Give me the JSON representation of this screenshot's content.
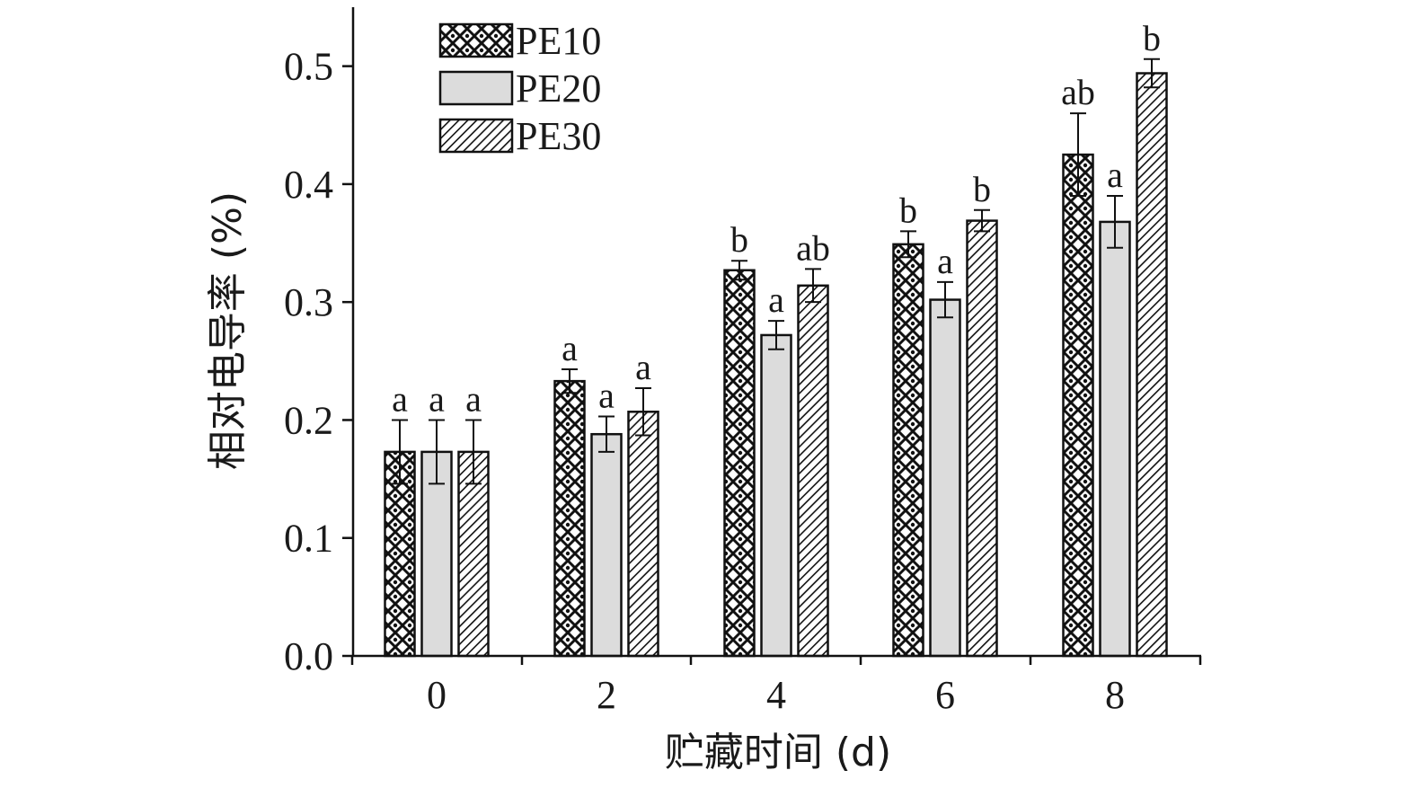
{
  "chart_data": {
    "type": "bar",
    "xlabel": "贮藏时间 (d)",
    "ylabel": "相对电导率 (%)",
    "categories": [
      "0",
      "2",
      "4",
      "6",
      "8"
    ],
    "ylim": [
      0.0,
      0.55
    ],
    "yticks": [
      "0.0",
      "0.1",
      "0.2",
      "0.3",
      "0.4",
      "0.5"
    ],
    "legend_position": "top-left",
    "grid": false,
    "series": [
      {
        "name": "PE10",
        "pattern": "crosshatch",
        "color": "#ffffff",
        "values": [
          0.173,
          0.233,
          0.327,
          0.349,
          0.425
        ],
        "errors": [
          0.027,
          0.01,
          0.008,
          0.011,
          0.035
        ],
        "labels": [
          "a",
          "a",
          "b",
          "b",
          "ab"
        ]
      },
      {
        "name": "PE20",
        "pattern": "solid",
        "color": "#dcdcdc",
        "values": [
          0.173,
          0.188,
          0.272,
          0.302,
          0.368
        ],
        "errors": [
          0.027,
          0.015,
          0.012,
          0.015,
          0.022
        ],
        "labels": [
          "a",
          "a",
          "a",
          "a",
          "a"
        ]
      },
      {
        "name": "PE30",
        "pattern": "diagonal",
        "color": "#ffffff",
        "values": [
          0.173,
          0.207,
          0.314,
          0.369,
          0.494
        ],
        "errors": [
          0.027,
          0.02,
          0.014,
          0.009,
          0.012
        ],
        "labels": [
          "a",
          "a",
          "ab",
          "b",
          "b"
        ]
      }
    ]
  }
}
